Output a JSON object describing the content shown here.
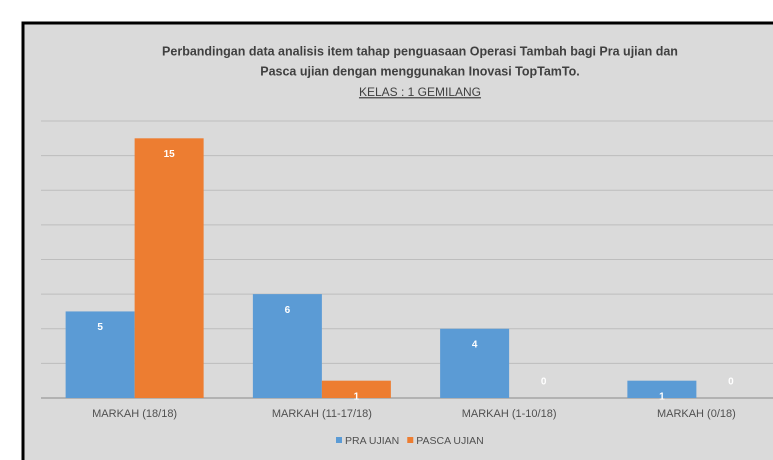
{
  "chart_data": {
    "type": "bar",
    "title": "Perbandingan data analisis item tahap penguasaan Operasi Tambah bagi Pra ujian dan",
    "title_line2": "Pasca ujian dengan menggunakan Inovasi TopTamTo.",
    "subtitle": "KELAS : 1 GEMILANG",
    "categories": [
      "MARKAH (18/18)",
      "MARKAH (11-17/18)",
      "MARKAH (1-10/18)",
      "MARKAH (0/18)"
    ],
    "series": [
      {
        "name": "PRA UJIAN",
        "color": "#5b9bd5",
        "values": [
          5,
          6,
          4,
          1
        ]
      },
      {
        "name": "PASCA UJIAN",
        "color": "#ed7d31",
        "values": [
          15,
          1,
          0,
          0
        ]
      }
    ],
    "ylim": [
      0,
      16
    ],
    "yticks": [
      0,
      2,
      4,
      6,
      8,
      10,
      12,
      14,
      16
    ],
    "grid": true,
    "legend": "bottom"
  }
}
